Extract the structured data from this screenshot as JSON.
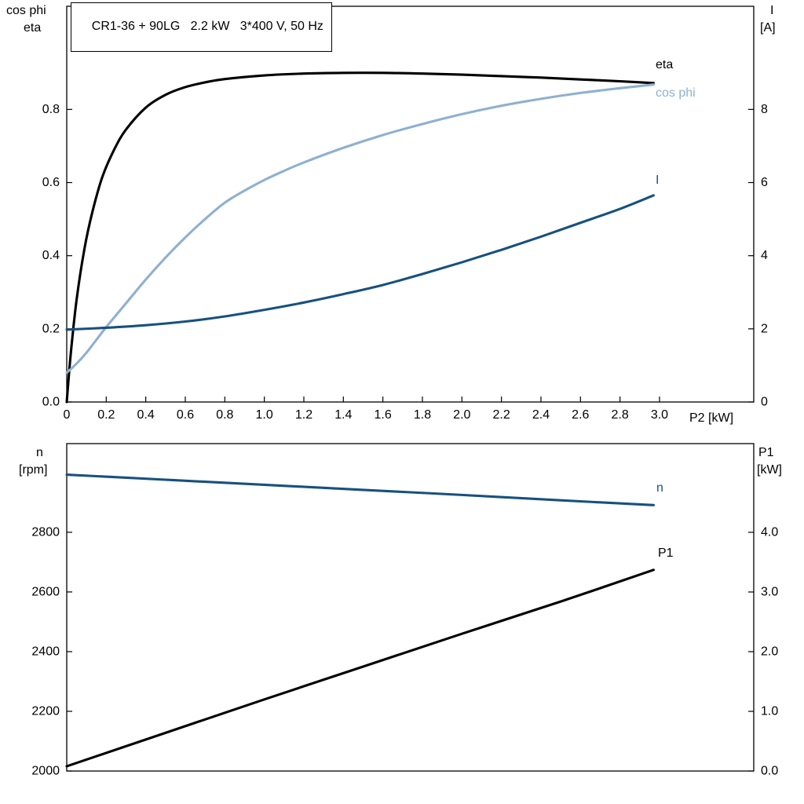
{
  "header": {
    "title_box": "CR1-36 + 90LG   2.2 kW   3*400 V, 50 Hz"
  },
  "axis_labels": {
    "top_left_1": "cos phi",
    "top_left_2": "eta",
    "top_right_1": "I",
    "top_right_2": "[A]",
    "x_label": "P2 [kW]",
    "bottom_left_1": "n",
    "bottom_left_2": "[rpm]",
    "bottom_right_1": "P1",
    "bottom_right_2": "[kW]"
  },
  "curve_labels": {
    "eta": "eta",
    "cos_phi": "cos phi",
    "current": "I",
    "n": "n",
    "p1": "P1"
  },
  "colors": {
    "black": "#000000",
    "light_blue": "#8fb0d0",
    "dark_blue": "#17517e",
    "axis": "#000000",
    "background": "#ffffff"
  },
  "chart_data": [
    {
      "type": "line",
      "panel": "top",
      "title": "CR1-36 + 90LG   2.2 kW   3*400 V, 50 Hz",
      "xlabel": "P2 [kW]",
      "x_range": [
        0,
        3.477
      ],
      "x_ticks": {
        "values": [
          0,
          0.2,
          0.4,
          0.6,
          0.8,
          1.0,
          1.2,
          1.4,
          1.6,
          1.8,
          2.0,
          2.2,
          2.4,
          2.6,
          2.8,
          3.0
        ],
        "labels": [
          "0",
          "0.2",
          "0.4",
          "0.6",
          "0.8",
          "1.0",
          "1.2",
          "1.4",
          "1.6",
          "1.8",
          "2.0",
          "2.2",
          "2.4",
          "2.6",
          "2.8",
          "3.0"
        ]
      },
      "y_left": {
        "label": "cos phi / eta",
        "range": [
          0,
          1.082
        ],
        "ticks": {
          "values": [
            0.0,
            0.2,
            0.4,
            0.6,
            0.8
          ],
          "labels": [
            "0.0",
            "0.2",
            "0.4",
            "0.6",
            "0.8"
          ]
        }
      },
      "y_right": {
        "label": "I [A]",
        "range": [
          0,
          10.82
        ],
        "ticks": {
          "values": [
            0,
            2,
            4,
            6,
            8
          ],
          "labels": [
            "0",
            "2",
            "4",
            "6",
            "8"
          ]
        }
      },
      "grid": false,
      "series": [
        {
          "name": "eta",
          "axis": "left",
          "color": "#000000",
          "x": [
            0,
            0.02,
            0.05,
            0.09,
            0.13,
            0.18,
            0.24,
            0.3,
            0.4,
            0.5,
            0.6,
            0.7,
            0.8,
            1.0,
            1.2,
            1.4,
            1.6,
            1.8,
            2.0,
            2.2,
            2.4,
            2.6,
            2.8,
            2.97
          ],
          "y": [
            0,
            0.13,
            0.28,
            0.42,
            0.52,
            0.615,
            0.69,
            0.745,
            0.805,
            0.84,
            0.861,
            0.874,
            0.883,
            0.893,
            0.898,
            0.9,
            0.9,
            0.898,
            0.895,
            0.891,
            0.887,
            0.882,
            0.877,
            0.872
          ]
        },
        {
          "name": "cos phi",
          "axis": "left",
          "color": "#8fb0d0",
          "x": [
            0,
            0.05,
            0.1,
            0.15,
            0.2,
            0.3,
            0.4,
            0.5,
            0.6,
            0.7,
            0.8,
            0.9,
            1.0,
            1.1,
            1.2,
            1.4,
            1.6,
            1.8,
            2.0,
            2.2,
            2.4,
            2.6,
            2.8,
            2.97
          ],
          "y": [
            0.08,
            0.105,
            0.135,
            0.17,
            0.205,
            0.27,
            0.335,
            0.395,
            0.45,
            0.5,
            0.545,
            0.578,
            0.607,
            0.632,
            0.655,
            0.695,
            0.73,
            0.76,
            0.787,
            0.81,
            0.829,
            0.845,
            0.858,
            0.868
          ]
        },
        {
          "name": "I",
          "axis": "right",
          "color": "#17517e",
          "x": [
            0,
            0.2,
            0.4,
            0.6,
            0.8,
            1.0,
            1.2,
            1.4,
            1.6,
            1.8,
            2.0,
            2.2,
            2.4,
            2.6,
            2.8,
            2.97
          ],
          "y": [
            1.98,
            2.03,
            2.1,
            2.2,
            2.34,
            2.52,
            2.72,
            2.95,
            3.2,
            3.5,
            3.82,
            4.16,
            4.52,
            4.9,
            5.28,
            5.65
          ]
        }
      ]
    },
    {
      "type": "line",
      "panel": "bottom",
      "xlabel": "",
      "x_range": [
        0,
        3.477
      ],
      "x_ticks": {
        "values": [],
        "labels": []
      },
      "y_left": {
        "label": "n [rpm]",
        "range": [
          2000,
          3097
        ],
        "ticks": {
          "values": [
            2000,
            2200,
            2400,
            2600,
            2800
          ],
          "labels": [
            "2000",
            "2200",
            "2400",
            "2600",
            "2800"
          ]
        }
      },
      "y_right": {
        "label": "P1 [kW]",
        "range": [
          0,
          5.486
        ],
        "ticks": {
          "values": [
            0.0,
            1.0,
            2.0,
            3.0,
            4.0
          ],
          "labels": [
            "0.0",
            "1.0",
            "2.0",
            "3.0",
            "4.0"
          ]
        }
      },
      "grid": false,
      "series": [
        {
          "name": "n",
          "axis": "left",
          "color": "#17517e",
          "x": [
            0,
            0.5,
            1.0,
            1.5,
            2.0,
            2.5,
            2.97
          ],
          "y": [
            2993,
            2976,
            2959,
            2942,
            2925,
            2907,
            2891
          ]
        },
        {
          "name": "P1",
          "axis": "right",
          "color": "#000000",
          "x": [
            0,
            0.5,
            1.0,
            1.5,
            2.0,
            2.5,
            2.97
          ],
          "y": [
            0.08,
            0.64,
            1.2,
            1.75,
            2.3,
            2.84,
            3.37
          ]
        }
      ]
    }
  ]
}
